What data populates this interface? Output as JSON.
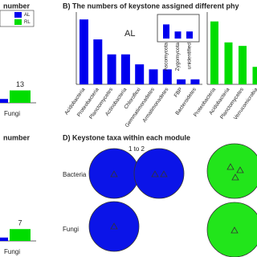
{
  "chart_data": [
    {
      "type": "bar",
      "title": "number",
      "categories": [
        "Fungi"
      ],
      "series": [
        {
          "name": "AL",
          "color": "#0000ee",
          "values": [
            4
          ]
        },
        {
          "name": "RL",
          "color": "#00dd00",
          "values": [
            13
          ]
        }
      ],
      "ylim": [
        0,
        80
      ],
      "show_values": true
    },
    {
      "type": "bar",
      "title": "B)  The numbers of keystone assigned different phy",
      "annotation": "AL",
      "categories": [
        "Acidobacteria",
        "Proteobacteria",
        "Planctomycetes",
        "Actinobacteria",
        "Chloroflexi",
        "Gemmatimonadetes",
        "Armatimonadetes",
        "FBP",
        "Bacteroidetes"
      ],
      "series": [
        {
          "color": "#0000ee",
          "values": [
            13,
            9,
            6,
            6,
            4,
            3,
            3,
            1,
            1
          ]
        }
      ],
      "ylim": [
        0,
        14
      ],
      "show_values": false
    },
    {
      "type": "bar",
      "categories": [
        "Ascomycota",
        "Zygomycota",
        "unidentified"
      ],
      "series": [
        {
          "color": "#0000ee",
          "values": [
            2,
            1,
            1
          ]
        }
      ],
      "ylim": [
        0,
        2.5
      ],
      "show_values": false
    },
    {
      "type": "bar",
      "categories": [
        "Proteobacteria",
        "Acidobacteria",
        "Planctomycetes",
        "Verrucomicrobia"
      ],
      "series": [
        {
          "color": "#00dd00",
          "values": [
            18,
            12,
            11,
            5
          ]
        }
      ],
      "ylim": [
        0,
        20
      ],
      "show_values": false
    },
    {
      "type": "bar",
      "title": "number",
      "categories": [
        "Fungi"
      ],
      "series": [
        {
          "name": "AL",
          "color": "#0000ee",
          "values": [
            2
          ]
        },
        {
          "name": "RL",
          "color": "#00dd00",
          "values": [
            7
          ]
        }
      ],
      "ylim": [
        0,
        45
      ],
      "show_values": true
    }
  ],
  "panel_d": {
    "title": "D)  Keystone taxa within each module",
    "rows": [
      "Bacteria",
      "Fungi"
    ],
    "annotation": "1 to 2"
  }
}
